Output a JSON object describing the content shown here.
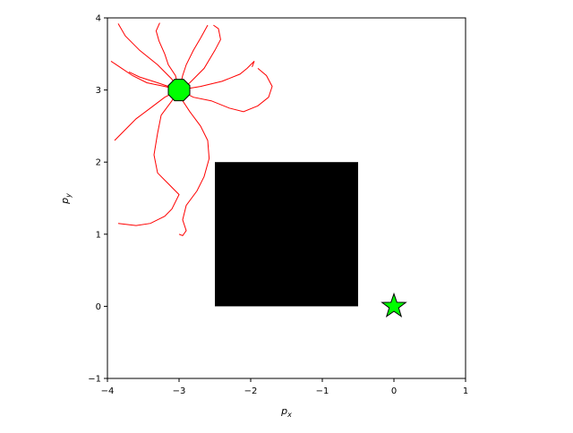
{
  "chart_data": {
    "type": "scatter",
    "title": "",
    "xlabel": "p",
    "xlabel_sub": "x",
    "ylabel": "p",
    "ylabel_sub": "y",
    "xlim": [
      -4,
      1
    ],
    "ylim": [
      -1,
      4
    ],
    "xticks": [
      -4,
      -3,
      -2,
      -1,
      0,
      1
    ],
    "yticks": [
      -1,
      0,
      1,
      2,
      3,
      4
    ],
    "xtick_labels": [
      "−4",
      "−3",
      "−2",
      "−1",
      "0",
      "1"
    ],
    "ytick_labels": [
      "−1",
      "0",
      "1",
      "2",
      "3",
      "4"
    ],
    "grid": false,
    "obstacle": {
      "x": [
        -2.5,
        -0.5
      ],
      "y": [
        0,
        2
      ],
      "color": "#000000"
    },
    "start": {
      "x": -3,
      "y": 3,
      "marker": "octagon",
      "color": "#00ff00"
    },
    "goal": {
      "x": 0,
      "y": 0,
      "marker": "star",
      "color": "#00ff00"
    },
    "trajectory_color": "#ff0000",
    "trajectories": [
      [
        [
          -3,
          3
        ],
        [
          -3.1,
          3.15
        ],
        [
          -3.3,
          3.35
        ],
        [
          -3.55,
          3.55
        ],
        [
          -3.75,
          3.75
        ],
        [
          -3.85,
          3.92
        ]
      ],
      [
        [
          -3,
          3
        ],
        [
          -3.05,
          3.2
        ],
        [
          -3.15,
          3.35
        ],
        [
          -3.2,
          3.5
        ],
        [
          -3.28,
          3.68
        ],
        [
          -3.32,
          3.82
        ],
        [
          -3.27,
          3.93
        ]
      ],
      [
        [
          -3,
          3
        ],
        [
          -2.95,
          3.2
        ],
        [
          -2.9,
          3.35
        ],
        [
          -2.8,
          3.55
        ],
        [
          -2.7,
          3.72
        ],
        [
          -2.6,
          3.9
        ]
      ],
      [
        [
          -3,
          3
        ],
        [
          -2.85,
          3.1
        ],
        [
          -2.65,
          3.3
        ],
        [
          -2.5,
          3.55
        ],
        [
          -2.42,
          3.7
        ],
        [
          -2.45,
          3.85
        ],
        [
          -2.52,
          3.9
        ]
      ],
      [
        [
          -3,
          3
        ],
        [
          -2.7,
          3.05
        ],
        [
          -2.4,
          3.12
        ],
        [
          -2.15,
          3.22
        ],
        [
          -2.05,
          3.3
        ],
        [
          -1.95,
          3.4
        ],
        [
          -1.98,
          3.32
        ]
      ],
      [
        [
          -3,
          3
        ],
        [
          -2.8,
          2.9
        ],
        [
          -2.55,
          2.85
        ],
        [
          -2.3,
          2.75
        ],
        [
          -2.1,
          2.7
        ],
        [
          -1.9,
          2.78
        ],
        [
          -1.75,
          2.9
        ],
        [
          -1.7,
          3.05
        ],
        [
          -1.78,
          3.2
        ],
        [
          -1.9,
          3.3
        ]
      ],
      [
        [
          -3,
          3
        ],
        [
          -3.2,
          3.05
        ],
        [
          -3.45,
          3.1
        ],
        [
          -3.65,
          3.2
        ],
        [
          -3.8,
          3.3
        ],
        [
          -3.95,
          3.4
        ]
      ],
      [
        [
          -3,
          3
        ],
        [
          -3.3,
          3.1
        ],
        [
          -3.55,
          3.18
        ],
        [
          -3.7,
          3.25
        ]
      ],
      [
        [
          -3,
          3
        ],
        [
          -3.2,
          2.9
        ],
        [
          -3.4,
          2.75
        ],
        [
          -3.6,
          2.6
        ],
        [
          -3.75,
          2.45
        ],
        [
          -3.9,
          2.3
        ]
      ],
      [
        [
          -3,
          3
        ],
        [
          -3.1,
          2.85
        ],
        [
          -3.25,
          2.65
        ],
        [
          -3.3,
          2.4
        ],
        [
          -3.35,
          2.1
        ],
        [
          -3.3,
          1.85
        ],
        [
          -3.15,
          1.7
        ],
        [
          -3.0,
          1.55
        ],
        [
          -3.1,
          1.35
        ],
        [
          -3.2,
          1.25
        ],
        [
          -3.4,
          1.15
        ],
        [
          -3.6,
          1.12
        ],
        [
          -3.85,
          1.15
        ]
      ],
      [
        [
          -3,
          3
        ],
        [
          -2.95,
          2.85
        ],
        [
          -2.85,
          2.7
        ],
        [
          -2.7,
          2.5
        ],
        [
          -2.6,
          2.3
        ],
        [
          -2.58,
          2.05
        ],
        [
          -2.65,
          1.8
        ],
        [
          -2.75,
          1.6
        ],
        [
          -2.9,
          1.4
        ],
        [
          -2.95,
          1.2
        ],
        [
          -2.9,
          1.05
        ],
        [
          -2.95,
          0.98
        ],
        [
          -3.0,
          1.0
        ]
      ]
    ]
  }
}
